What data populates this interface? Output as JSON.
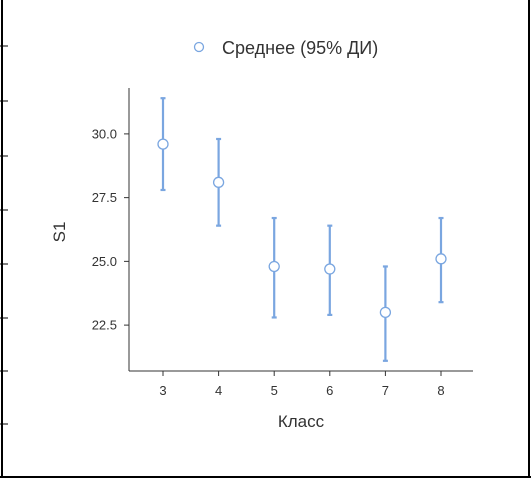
{
  "colors": {
    "series": "#7aa6e0",
    "axis": "#333333",
    "frame": "#000000",
    "background": "#ffffff"
  },
  "chart_data": {
    "type": "scatter",
    "title": "",
    "xlabel": "Класс",
    "ylabel": "S1",
    "categories": [
      "3",
      "4",
      "5",
      "6",
      "7",
      "8"
    ],
    "y_ticks": [
      "22.5",
      "25.0",
      "27.5",
      "30.0"
    ],
    "ylim": [
      20.7,
      31.8
    ],
    "grid": false,
    "legend_position": "top",
    "series": [
      {
        "name": "Среднее (95% ДИ)",
        "marker": "open-circle",
        "mean": [
          29.6,
          28.1,
          24.8,
          24.7,
          23.0,
          25.1
        ],
        "ci_low": [
          27.8,
          26.4,
          22.8,
          22.9,
          21.1,
          23.4
        ],
        "ci_high": [
          31.4,
          29.8,
          26.7,
          26.4,
          24.8,
          26.7
        ]
      }
    ]
  }
}
